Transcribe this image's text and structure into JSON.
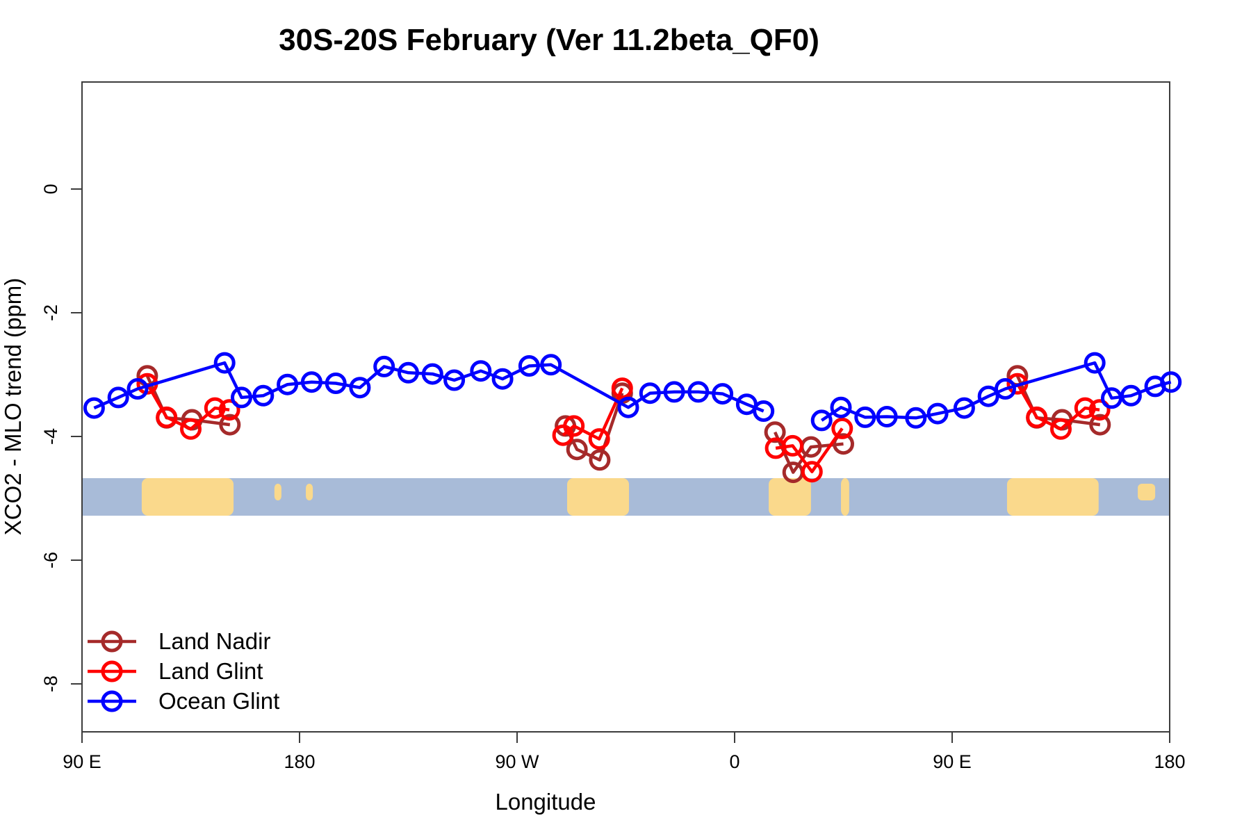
{
  "chart_data": {
    "type": "line",
    "title": "30S-20S February (Ver 11.2beta_QF0)",
    "xlabel": "Longitude",
    "ylabel": "XCO2 - MLO trend (ppm)",
    "x_axis": {
      "unit": "degrees of longitude eastward from 90E (plot spans 450 deg, wrapping the dateline)",
      "range_deg": [
        0,
        450
      ],
      "ticks": [
        {
          "deg": 0,
          "label": "90 E"
        },
        {
          "deg": 90,
          "label": "180"
        },
        {
          "deg": 180,
          "label": "90 W"
        },
        {
          "deg": 270,
          "label": "0"
        },
        {
          "deg": 360,
          "label": "90 E"
        },
        {
          "deg": 450,
          "label": "180"
        }
      ],
      "grid": false
    },
    "y_axis": {
      "range": [
        -8.8,
        1.7
      ],
      "ticks": [
        {
          "val": 0,
          "label": "0"
        },
        {
          "val": -2,
          "label": "-2"
        },
        {
          "val": -4,
          "label": "-4"
        },
        {
          "val": -6,
          "label": "-6"
        },
        {
          "val": -8,
          "label": "-8"
        }
      ],
      "grid": false
    },
    "series": [
      {
        "name": "Land Nadir",
        "color": "#A52A2A",
        "marker": "open-circle",
        "segments": [
          [
            [
              27,
              -3.02
            ],
            [
              35,
              -3.7
            ],
            [
              45.5,
              -3.73
            ],
            [
              61.2,
              -3.81
            ]
          ],
          [
            [
              200,
              -3.83
            ],
            [
              204.8,
              -4.21
            ],
            [
              214.2,
              -4.38
            ],
            [
              223.5,
              -3.3
            ]
          ],
          [
            [
              286.7,
              -3.93
            ],
            [
              294.2,
              -4.58
            ],
            [
              301.6,
              -4.17
            ],
            [
              315,
              -4.12
            ]
          ],
          [
            [
              387,
              -3.02
            ],
            [
              395,
              -3.7
            ],
            [
              405.5,
              -3.73
            ],
            [
              421.2,
              -3.81
            ]
          ]
        ]
      },
      {
        "name": "Land Glint",
        "color": "#FF0000",
        "marker": "open-circle",
        "segments": [
          [
            [
              27,
              -3.15
            ],
            [
              35,
              -3.69
            ],
            [
              45,
              -3.88
            ],
            [
              55,
              -3.54
            ],
            [
              61,
              -3.57
            ]
          ],
          [
            [
              199,
              -3.98
            ],
            [
              203.5,
              -3.83
            ],
            [
              214,
              -4.04
            ],
            [
              223.5,
              -3.22
            ]
          ],
          [
            [
              287,
              -4.19
            ],
            [
              294,
              -4.15
            ],
            [
              302,
              -4.57
            ],
            [
              314.5,
              -3.87
            ]
          ],
          [
            [
              387,
              -3.15
            ],
            [
              395,
              -3.69
            ],
            [
              405,
              -3.88
            ],
            [
              415,
              -3.54
            ],
            [
              421,
              -3.57
            ]
          ]
        ]
      },
      {
        "name": "Ocean Glint",
        "color": "#0000FF",
        "marker": "open-circle",
        "segments": [
          [
            [
              5,
              -3.54
            ],
            [
              15,
              -3.37
            ],
            [
              23,
              -3.23
            ],
            [
              59,
              -2.81
            ],
            [
              66,
              -3.37
            ],
            [
              75,
              -3.34
            ],
            [
              85,
              -3.16
            ],
            [
              95,
              -3.12
            ],
            [
              105,
              -3.14
            ],
            [
              115,
              -3.21
            ],
            [
              125,
              -2.87
            ],
            [
              135,
              -2.97
            ],
            [
              145,
              -2.99
            ],
            [
              154,
              -3.09
            ],
            [
              165,
              -2.94
            ],
            [
              174,
              -3.07
            ],
            [
              185,
              -2.86
            ],
            [
              194,
              -2.84
            ],
            [
              226,
              -3.53
            ],
            [
              235,
              -3.3
            ],
            [
              245,
              -3.28
            ],
            [
              255,
              -3.28
            ],
            [
              265,
              -3.31
            ],
            [
              275,
              -3.48
            ],
            [
              282,
              -3.59
            ]
          ],
          [
            [
              306,
              -3.74
            ],
            [
              314,
              -3.53
            ],
            [
              324,
              -3.69
            ],
            [
              333,
              -3.68
            ],
            [
              345,
              -3.7
            ],
            [
              354,
              -3.63
            ],
            [
              365,
              -3.54
            ],
            [
              375,
              -3.35
            ],
            [
              382,
              -3.23
            ],
            [
              419,
              -2.81
            ],
            [
              426,
              -3.38
            ],
            [
              434,
              -3.34
            ],
            [
              444,
              -3.19
            ],
            [
              450.5,
              -3.12
            ]
          ]
        ]
      }
    ],
    "map_strip": {
      "description": "land/ocean map band for the 30S-20S latitude zone",
      "ocean_color": "#A8BBD8",
      "land_color": "#FAD98C",
      "band_value_range": [
        -4.67,
        -5.28
      ],
      "land_patches_deg": [
        {
          "from": 24.7,
          "to": 62.7,
          "small": false
        },
        {
          "from": 79.6,
          "to": 82.5,
          "small": true
        },
        {
          "from": 92.6,
          "to": 95.5,
          "small": true
        },
        {
          "from": 200.7,
          "to": 226.3,
          "small": false
        },
        {
          "from": 284.1,
          "to": 301.6,
          "small": false
        },
        {
          "from": 314.0,
          "to": 317.4,
          "small": false
        },
        {
          "from": 382.7,
          "to": 420.6,
          "small": false
        },
        {
          "from": 436.8,
          "to": 444.0,
          "small": true
        }
      ]
    }
  },
  "legend": [
    {
      "label": "Land Nadir",
      "color": "#A52A2A"
    },
    {
      "label": "Land Glint",
      "color": "#FF0000"
    },
    {
      "label": "Ocean Glint",
      "color": "#0000FF"
    }
  ]
}
